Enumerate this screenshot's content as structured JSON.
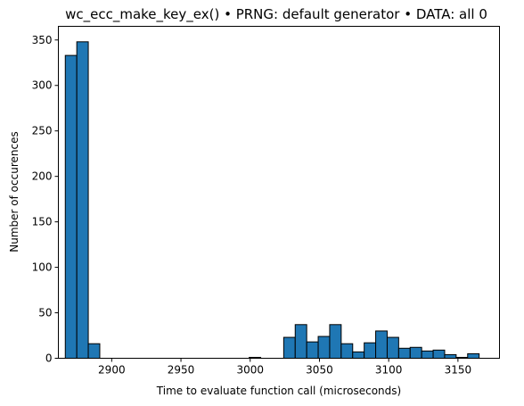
{
  "chart_data": {
    "type": "bar",
    "title": "wc_ecc_make_key_ex() • PRNG: default generator • DATA: all 0",
    "xlabel": "Time to evaluate function call (microseconds)",
    "ylabel": "Number of occurences",
    "xlim": [
      2861.5,
      3180
    ],
    "ylim": [
      0,
      365
    ],
    "xticks": [
      2900,
      2950,
      3000,
      3050,
      3100,
      3150
    ],
    "yticks": [
      0,
      50,
      100,
      150,
      200,
      250,
      300,
      350
    ],
    "grid": false,
    "colors": {
      "bar_fill": "#1f77b4",
      "bar_edge": "#000000"
    },
    "bins": [
      {
        "x0": 2866.5,
        "x1": 2874.8,
        "value": 333
      },
      {
        "x0": 2874.8,
        "x1": 2883.1,
        "value": 348
      },
      {
        "x0": 2883.1,
        "x1": 2891.4,
        "value": 16
      },
      {
        "x0": 2891.4,
        "x1": 2899.7,
        "value": 0
      },
      {
        "x0": 2899.7,
        "x1": 2908.0,
        "value": 0
      },
      {
        "x0": 2908.0,
        "x1": 2916.3,
        "value": 0
      },
      {
        "x0": 2916.3,
        "x1": 2924.6,
        "value": 0
      },
      {
        "x0": 2924.6,
        "x1": 2932.9,
        "value": 0
      },
      {
        "x0": 2932.9,
        "x1": 2941.2,
        "value": 0
      },
      {
        "x0": 2941.2,
        "x1": 2949.5,
        "value": 0
      },
      {
        "x0": 2949.5,
        "x1": 2957.8,
        "value": 0
      },
      {
        "x0": 2957.8,
        "x1": 2966.1,
        "value": 0
      },
      {
        "x0": 2966.1,
        "x1": 2974.4,
        "value": 0
      },
      {
        "x0": 2974.4,
        "x1": 2982.7,
        "value": 0
      },
      {
        "x0": 2982.7,
        "x1": 2991.0,
        "value": 0
      },
      {
        "x0": 2991.0,
        "x1": 2999.3,
        "value": 0
      },
      {
        "x0": 2999.3,
        "x1": 3007.6,
        "value": 1
      },
      {
        "x0": 3007.6,
        "x1": 3015.9,
        "value": 0
      },
      {
        "x0": 3015.9,
        "x1": 3024.2,
        "value": 0
      },
      {
        "x0": 3024.2,
        "x1": 3032.5,
        "value": 23
      },
      {
        "x0": 3032.5,
        "x1": 3040.8,
        "value": 37
      },
      {
        "x0": 3040.8,
        "x1": 3049.1,
        "value": 18
      },
      {
        "x0": 3049.1,
        "x1": 3057.4,
        "value": 24
      },
      {
        "x0": 3057.4,
        "x1": 3065.7,
        "value": 37
      },
      {
        "x0": 3065.7,
        "x1": 3074.0,
        "value": 16
      },
      {
        "x0": 3074.0,
        "x1": 3082.3,
        "value": 7
      },
      {
        "x0": 3082.3,
        "x1": 3090.6,
        "value": 17
      },
      {
        "x0": 3090.6,
        "x1": 3098.9,
        "value": 30
      },
      {
        "x0": 3098.9,
        "x1": 3107.2,
        "value": 23
      },
      {
        "x0": 3107.2,
        "x1": 3115.5,
        "value": 11
      },
      {
        "x0": 3115.5,
        "x1": 3123.8,
        "value": 12
      },
      {
        "x0": 3123.8,
        "x1": 3132.1,
        "value": 8
      },
      {
        "x0": 3132.1,
        "x1": 3140.4,
        "value": 9
      },
      {
        "x0": 3140.4,
        "x1": 3148.7,
        "value": 4
      },
      {
        "x0": 3148.7,
        "x1": 3157.0,
        "value": 1
      },
      {
        "x0": 3157.0,
        "x1": 3165.3,
        "value": 5
      }
    ]
  }
}
